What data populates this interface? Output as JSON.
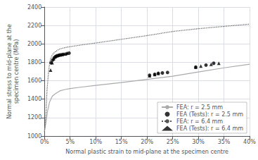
{
  "chart_data": {
    "type": "line",
    "xlabel": "Normal plastic strain to mid-plane at the specimen centre",
    "ylabel": "Normal stress to mid-plane at the\nspecimen centre (MPa)",
    "xlim": [
      0.0,
      0.4
    ],
    "ylim": [
      1000,
      2400
    ],
    "xticks": [
      {
        "value": 0.0,
        "label": "0%"
      },
      {
        "value": 0.05,
        "label": "5%"
      },
      {
        "value": 0.1,
        "label": "10%"
      },
      {
        "value": 0.15,
        "label": "15%"
      },
      {
        "value": 0.2,
        "label": "20%"
      },
      {
        "value": 0.25,
        "label": "25%"
      },
      {
        "value": 0.3,
        "label": "30%"
      },
      {
        "value": 0.35,
        "label": "35%"
      },
      {
        "value": 0.4,
        "label": "40%"
      }
    ],
    "yticks": [
      1000,
      1200,
      1400,
      1600,
      1800,
      2000,
      2200,
      2400
    ],
    "grid": true,
    "legend": "lower right",
    "series": [
      {
        "name": "FEA: r = 2.5 mm",
        "type": "line",
        "color": "#aaaaaa",
        "line_style": "solid",
        "x": [
          0.0,
          0.003,
          0.006,
          0.01,
          0.015,
          0.02,
          0.03,
          0.04,
          0.05,
          0.07,
          0.1,
          0.15,
          0.2,
          0.25,
          0.3,
          0.35,
          0.4
        ],
        "values": [
          1050,
          1150,
          1270,
          1370,
          1430,
          1455,
          1490,
          1505,
          1515,
          1530,
          1550,
          1580,
          1615,
          1650,
          1695,
          1740,
          1780
        ]
      },
      {
        "name": "FEA (Tests): r = 2.5 mm",
        "type": "scatter",
        "color": "#000000",
        "marker": "circle",
        "x": [
          0.013,
          0.016,
          0.019,
          0.022,
          0.025,
          0.028,
          0.032,
          0.036,
          0.042,
          0.048,
          0.205,
          0.215,
          0.222,
          0.23,
          0.24,
          0.295,
          0.315,
          0.33
        ],
        "values": [
          1795,
          1825,
          1850,
          1865,
          1870,
          1875,
          1880,
          1885,
          1890,
          1900,
          1660,
          1670,
          1680,
          1685,
          1690,
          1748,
          1770,
          1790
        ]
      },
      {
        "name": "FEA: r = 6.4 mm",
        "type": "line",
        "color": "#555555",
        "line_style": "dotted",
        "x": [
          0.0,
          0.003,
          0.005,
          0.008,
          0.01,
          0.012,
          0.015,
          0.02,
          0.025,
          0.03,
          0.04,
          0.05,
          0.08,
          0.1,
          0.15,
          0.2,
          0.25,
          0.3,
          0.35,
          0.4
        ],
        "values": [
          1050,
          1250,
          1500,
          1700,
          1790,
          1840,
          1880,
          1910,
          1930,
          1945,
          1960,
          1970,
          1995,
          2010,
          2050,
          2090,
          2135,
          2165,
          2190,
          2215
        ]
      },
      {
        "name": "FEA (Tests): r = 6.4 mm",
        "type": "scatter",
        "color": "#000000",
        "marker": "triangle",
        "x": [
          0.012,
          0.015,
          0.018,
          0.021,
          0.024,
          0.027,
          0.03,
          0.034,
          0.038,
          0.044,
          0.205,
          0.215,
          0.222,
          0.295,
          0.305,
          0.325,
          0.34
        ],
        "values": [
          1715,
          1795,
          1840,
          1860,
          1875,
          1880,
          1885,
          1888,
          1892,
          1900,
          1655,
          1668,
          1680,
          1748,
          1760,
          1778,
          1790
        ]
      }
    ]
  }
}
